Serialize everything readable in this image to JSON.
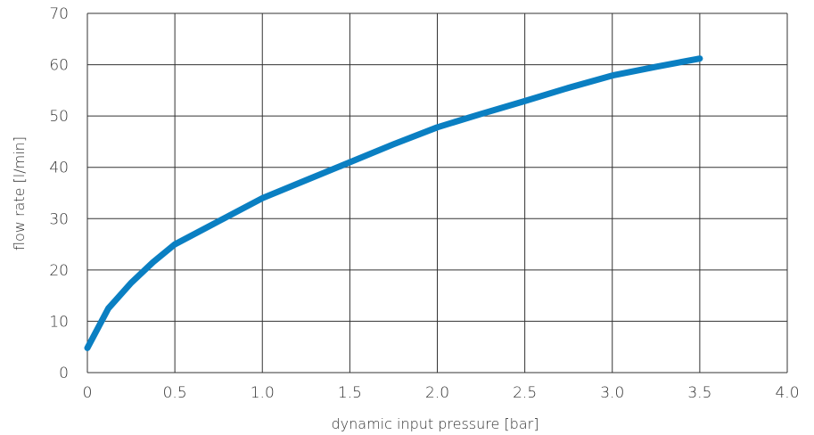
{
  "chart_data": {
    "type": "line",
    "title": "",
    "xlabel": "dynamic input pressure [bar]",
    "ylabel": "flow rate [l/min]",
    "xlim": [
      0,
      4.0
    ],
    "ylim": [
      0,
      70
    ],
    "xticks": [
      "0",
      "0.5",
      "1.0",
      "1.5",
      "2.0",
      "2.5",
      "3.0",
      "3.5",
      "4.0"
    ],
    "yticks": [
      "0",
      "10",
      "20",
      "30",
      "40",
      "50",
      "60",
      "70"
    ],
    "grid": true,
    "line_color": "#0a7fc2",
    "series": [
      {
        "x": [
          0,
          0.12,
          0.25,
          0.375,
          0.5,
          0.75,
          1.0,
          1.25,
          1.5,
          1.75,
          2.0,
          2.25,
          2.5,
          2.75,
          3.0,
          3.25,
          3.5
        ],
        "y": [
          4.8,
          12.5,
          17.5,
          21.5,
          25,
          29.5,
          34,
          37.5,
          41,
          44.5,
          47.8,
          50.4,
          52.9,
          55.5,
          57.9,
          59.6,
          61.2
        ]
      }
    ]
  }
}
